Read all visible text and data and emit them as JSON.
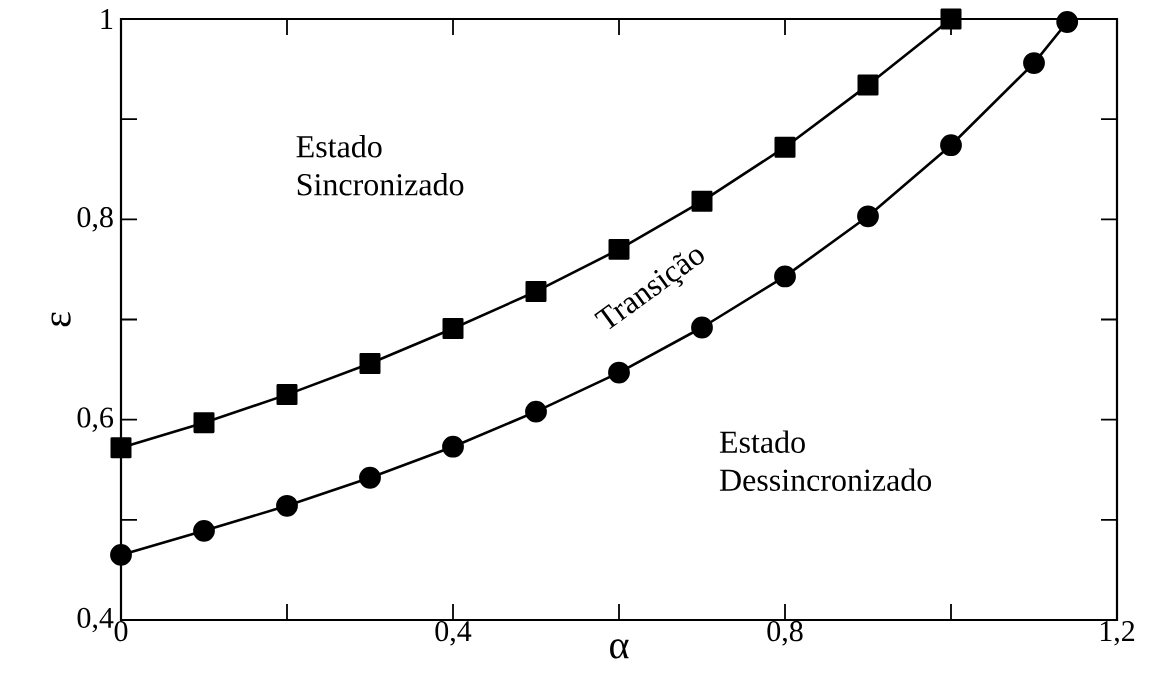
{
  "chart_data": {
    "type": "line",
    "xlabel": "α",
    "ylabel": "ε",
    "series": [
      {
        "color": "#000000",
        "marker": "square",
        "x": [
          0,
          0.1,
          0.2,
          0.3,
          0.4,
          0.5,
          0.6,
          0.7,
          0.8,
          0.9,
          1.0
        ],
        "values": [
          0.572,
          0.597,
          0.625,
          0.656,
          0.691,
          0.728,
          0.77,
          0.818,
          0.872,
          0.934,
          1.0
        ]
      },
      {
        "color": "#000000",
        "marker": "circle",
        "x": [
          0,
          0.1,
          0.2,
          0.3,
          0.4,
          0.5,
          0.6,
          0.7,
          0.8,
          0.9,
          1.0,
          1.1,
          1.14
        ],
        "values": [
          0.465,
          0.489,
          0.514,
          0.542,
          0.573,
          0.608,
          0.647,
          0.692,
          0.743,
          0.803,
          0.874,
          0.956,
          0.997
        ]
      }
    ],
    "xlim": [
      0,
      1.2
    ],
    "ylim": [
      0.4,
      1.0
    ],
    "xticks": [
      {
        "value": 0,
        "label": "0"
      },
      {
        "value": 0.2,
        "label": null
      },
      {
        "value": 0.4,
        "label": "0,4"
      },
      {
        "value": 0.6,
        "label": null
      },
      {
        "value": 0.8,
        "label": "0,8"
      },
      {
        "value": 1.0,
        "label": null
      },
      {
        "value": 1.2,
        "label": "1,2"
      }
    ],
    "yticks": [
      {
        "value": 0.4,
        "label": "0,4"
      },
      {
        "value": 0.5,
        "label": null
      },
      {
        "value": 0.6,
        "label": "0,6"
      },
      {
        "value": 0.7,
        "label": null
      },
      {
        "value": 0.8,
        "label": "0,8"
      },
      {
        "value": 0.9,
        "label": null
      },
      {
        "value": 1.0,
        "label": "1"
      }
    ],
    "annotations": [
      "Estado Sincronizado",
      "Transição",
      "Estado Dessincronizado"
    ],
    "line_style": "solid",
    "grid": false
  }
}
